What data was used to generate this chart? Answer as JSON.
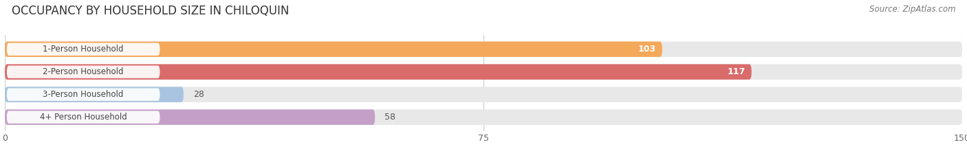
{
  "title": "OCCUPANCY BY HOUSEHOLD SIZE IN CHILOQUIN",
  "source": "Source: ZipAtlas.com",
  "categories": [
    "1-Person Household",
    "2-Person Household",
    "3-Person Household",
    "4+ Person Household"
  ],
  "values": [
    103,
    117,
    28,
    58
  ],
  "bar_colors": [
    "#F4A85A",
    "#D96B6B",
    "#A8C4E0",
    "#C4A0C8"
  ],
  "bar_label_colors": [
    "white",
    "white",
    "#555555",
    "#555555"
  ],
  "xlim": [
    0,
    150
  ],
  "xticks": [
    0,
    75,
    150
  ],
  "background_color": "#ffffff",
  "bar_bg_color": "#e8e8e8",
  "title_fontsize": 12,
  "source_fontsize": 8.5,
  "label_fontsize": 8.5,
  "value_fontsize": 9,
  "tick_fontsize": 9
}
